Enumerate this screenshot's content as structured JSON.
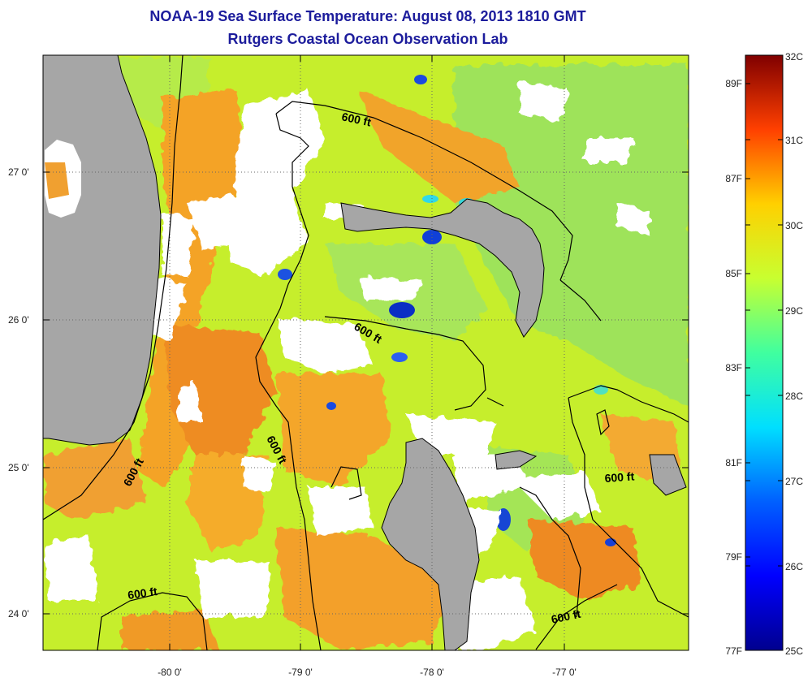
{
  "title": {
    "line1": "NOAA-19 Sea Surface Temperature:  August 08, 2013 1810 GMT",
    "line2": "Rutgers Coastal Ocean Observation Lab"
  },
  "axes": {
    "x_ticks": [
      "-80 0'",
      "-79 0'",
      "-78 0'",
      "-77 0'"
    ],
    "y_ticks": [
      "27 0'",
      "26 0'",
      "25 0'",
      "24 0'"
    ]
  },
  "contour_labels": [
    "600 ft",
    "600 ft",
    "600 ft",
    "600 ft",
    "600 ft",
    "600 ft"
  ],
  "colorbar": {
    "celsius": [
      "32C",
      "31C",
      "30C",
      "29C",
      "28C",
      "27C",
      "26C",
      "25C"
    ],
    "fahrenheit": [
      "89F",
      "87F",
      "85F",
      "83F",
      "81F",
      "79F",
      "77F"
    ],
    "range_c": [
      25,
      32
    ]
  },
  "colors": {
    "title": "#1c1c9c",
    "land": "#a6a6a6",
    "no_data": "#ffffff"
  }
}
